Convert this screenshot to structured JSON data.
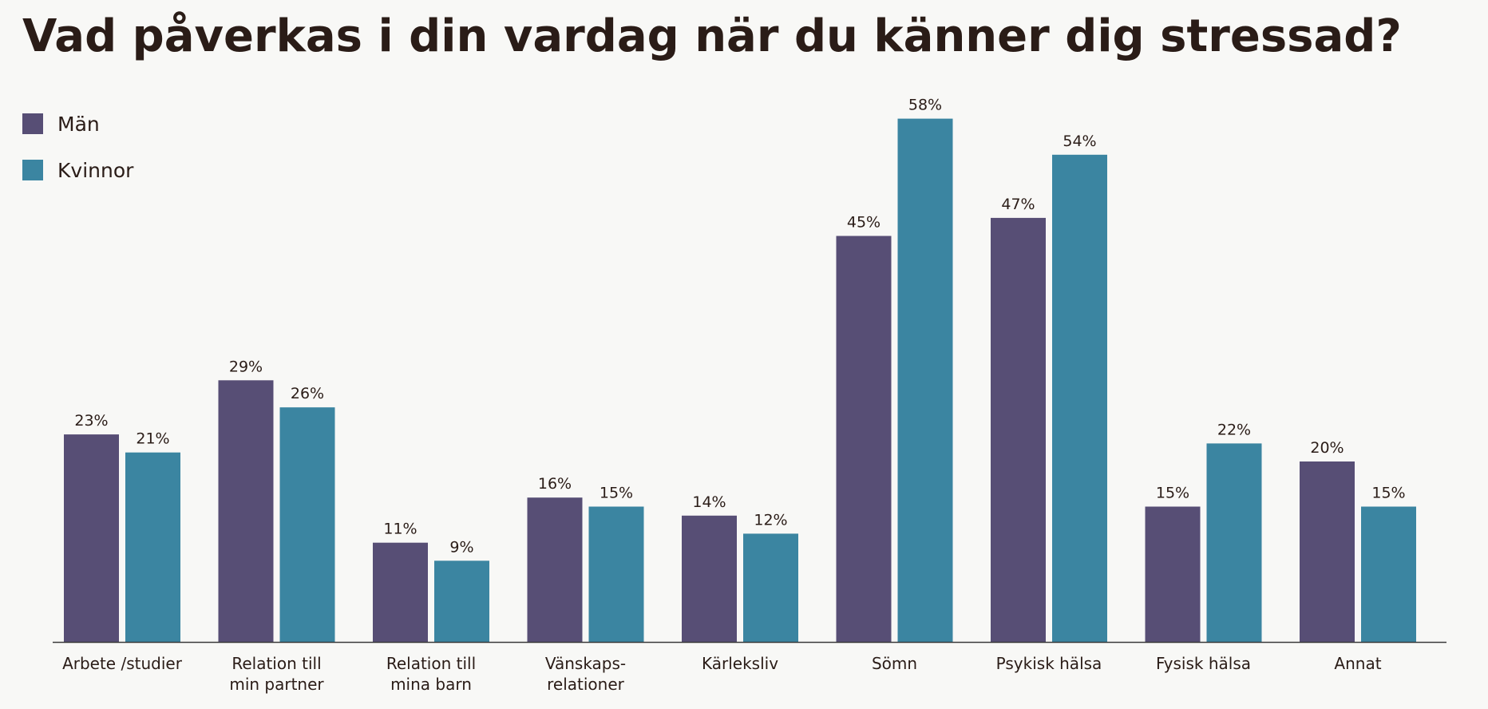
{
  "chart_data": {
    "type": "bar",
    "title": "Vad påverkas i din vardag när du känner dig stressad?",
    "categories": [
      [
        "Arbete /studier"
      ],
      [
        "Relation till",
        "min partner"
      ],
      [
        "Relation till",
        "mina barn"
      ],
      [
        "Vänskaps-",
        "relationer"
      ],
      [
        "Kärleksliv"
      ],
      [
        "Sömn"
      ],
      [
        "Psykisk hälsa"
      ],
      [
        "Fysisk hälsa"
      ],
      [
        "Annat"
      ]
    ],
    "series": [
      {
        "name": "Män",
        "color": "#574e75",
        "values": [
          23,
          29,
          11,
          16,
          14,
          45,
          47,
          15,
          20
        ],
        "labels": [
          "23%",
          "29%",
          "11%",
          "16%",
          "14%",
          "45%",
          "47%",
          "15%",
          "20%"
        ]
      },
      {
        "name": "Kvinnor",
        "color": "#3b85a1",
        "values": [
          21,
          26,
          9,
          15,
          12,
          58,
          54,
          22,
          15
        ],
        "labels": [
          "21%",
          "26%",
          "9%",
          "15%",
          "12%",
          "58%",
          "54%",
          "22%",
          "15%"
        ]
      }
    ],
    "legend_position": "top-left",
    "ylim": [
      0,
      58
    ],
    "grid": false
  }
}
